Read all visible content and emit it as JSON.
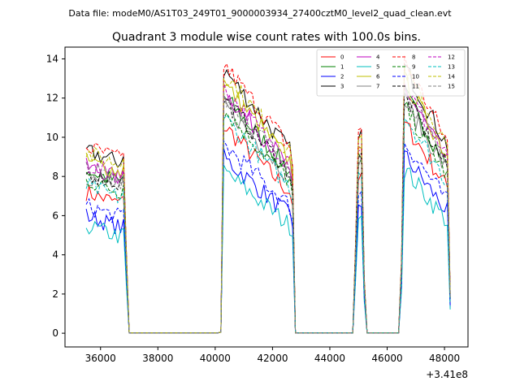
{
  "suptitle": "Data file: modeM0/AS1T03_249T01_9000003934_27400cztM0_level2_quad_clean.evt",
  "chart_data": {
    "type": "line",
    "title": "Quadrant 3 module wise count rates with 100.0s bins.",
    "xlabel": "",
    "ylabel": "",
    "x_offset_label": "+3.41e8",
    "xlim": [
      34760,
      48820
    ],
    "ylim": [
      -0.7,
      14.6
    ],
    "xticks": [
      36000,
      38000,
      40000,
      42000,
      44000,
      46000,
      48000
    ],
    "yticks": [
      0,
      2,
      4,
      6,
      8,
      10,
      12,
      14
    ],
    "x_ranges": [
      [
        35500,
        48200
      ]
    ],
    "segments_description": "Rates high during [35500-36800], [40300-42700], [45000-45200], [46600-48200]; near zero otherwise",
    "legend_position": "top-right",
    "series": [
      {
        "name": "0",
        "color": "#ff0000",
        "style": "solid",
        "level": 7.2
      },
      {
        "name": "1",
        "color": "#008000",
        "style": "solid",
        "level": 8.3
      },
      {
        "name": "2",
        "color": "#0000ff",
        "style": "solid",
        "level": 6.0
      },
      {
        "name": "3",
        "color": "#000000",
        "style": "solid",
        "level": 9.3
      },
      {
        "name": "4",
        "color": "#bf00bf",
        "style": "solid",
        "level": 8.5
      },
      {
        "name": "5",
        "color": "#00bfbf",
        "style": "solid",
        "level": 5.5
      },
      {
        "name": "6",
        "color": "#bfbf00",
        "style": "solid",
        "level": 8.8
      },
      {
        "name": "7",
        "color": "#808080",
        "style": "solid",
        "level": 8.0
      },
      {
        "name": "8",
        "color": "#ff0000",
        "style": "dashed",
        "level": 9.5
      },
      {
        "name": "9",
        "color": "#008000",
        "style": "dashed",
        "level": 7.8
      },
      {
        "name": "10",
        "color": "#0000ff",
        "style": "dashed",
        "level": 6.5
      },
      {
        "name": "11",
        "color": "#000000",
        "style": "dashed",
        "level": 8.2
      },
      {
        "name": "12",
        "color": "#bf00bf",
        "style": "dashed",
        "level": 8.6
      },
      {
        "name": "13",
        "color": "#00bfbf",
        "style": "dashed",
        "level": 7.5
      },
      {
        "name": "14",
        "color": "#bfbf00",
        "style": "dashed",
        "level": 9.2
      },
      {
        "name": "15",
        "color": "#808080",
        "style": "dashed",
        "level": 8.4
      }
    ]
  }
}
